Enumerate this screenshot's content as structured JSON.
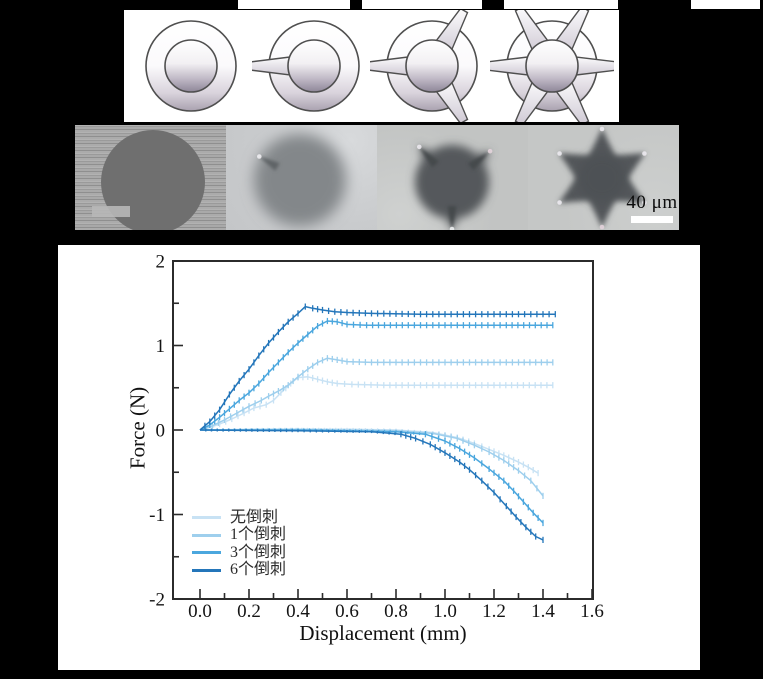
{
  "figure": {
    "scale_bar": {
      "label": "40 μm"
    },
    "schematics": {
      "items": [
        {
          "id": "no-barb",
          "barb_angles": [],
          "barb_len": 64
        },
        {
          "id": "one-barb",
          "barb_angles": [
            180
          ],
          "barb_len": 64
        },
        {
          "id": "three-barb",
          "barb_angles": [
            60,
            180,
            300
          ],
          "barb_len": 64
        },
        {
          "id": "six-barb",
          "barb_angles": [
            0,
            60,
            120,
            180,
            240,
            300
          ],
          "barb_len": 66
        }
      ]
    },
    "photos": {
      "items": [
        {
          "id": "micrograph-no-barb",
          "kind": "solid-circle"
        },
        {
          "id": "micrograph-one-barb",
          "kind": "blob-1barb",
          "spike_angles": [
            150
          ]
        },
        {
          "id": "micrograph-three-barb",
          "kind": "blob-3barb",
          "spike_angles": [
            133,
            39,
            270
          ]
        },
        {
          "id": "micrograph-six-barb",
          "kind": "star6",
          "points": 6,
          "phase_deg": 90,
          "outer_r": 50,
          "inner_r": 26
        }
      ]
    }
  },
  "chart_data": {
    "type": "line",
    "title": "",
    "xlabel": "Displacement (mm)",
    "ylabel": "Force (N)",
    "xlim": [
      -0.11,
      1.6
    ],
    "ylim": [
      -2,
      2
    ],
    "grid": false,
    "legend_position": "lower-left",
    "x_major_ticks": [
      0,
      0.2,
      0.4,
      0.6,
      0.8,
      1.0,
      1.2,
      1.4,
      1.6
    ],
    "x_tick_labels": [
      "0.0",
      "0.2",
      "0.4",
      "0.6",
      "0.8",
      "1.0",
      "1.2",
      "1.4",
      "1.6"
    ],
    "x_minor_ticks": [
      0.1,
      0.3,
      0.5,
      0.7,
      0.9,
      1.1,
      1.3,
      1.5
    ],
    "y_major_ticks": [
      -2,
      -1,
      0,
      1,
      2
    ],
    "y_tick_labels": [
      "-2",
      "-1",
      "0",
      "1",
      "2"
    ],
    "y_minor_ticks": [
      -1.5,
      -0.5,
      0.5,
      1.5
    ],
    "series": [
      {
        "id": "no-barb",
        "label": "无倒刺",
        "color": "#c8e2f4",
        "insertion": [
          [
            0,
            0
          ],
          [
            0.03,
            0.02
          ],
          [
            0.08,
            0.07
          ],
          [
            0.13,
            0.13
          ],
          [
            0.18,
            0.2
          ],
          [
            0.22,
            0.26
          ],
          [
            0.27,
            0.3
          ],
          [
            0.3,
            0.35
          ],
          [
            0.33,
            0.44
          ],
          [
            0.37,
            0.55
          ],
          [
            0.4,
            0.62
          ],
          [
            0.44,
            0.63
          ],
          [
            0.48,
            0.6
          ],
          [
            0.52,
            0.57
          ],
          [
            0.56,
            0.55
          ],
          [
            0.62,
            0.54
          ],
          [
            0.75,
            0.53
          ],
          [
            1.0,
            0.53
          ],
          [
            1.2,
            0.53
          ],
          [
            1.44,
            0.53
          ]
        ],
        "retraction": [
          [
            0,
            0
          ],
          [
            0.3,
            0.01
          ],
          [
            0.6,
            0.01
          ],
          [
            0.8,
            0
          ],
          [
            0.95,
            -0.03
          ],
          [
            1.05,
            -0.09
          ],
          [
            1.12,
            -0.16
          ],
          [
            1.18,
            -0.23
          ],
          [
            1.24,
            -0.3
          ],
          [
            1.3,
            -0.38
          ],
          [
            1.34,
            -0.44
          ],
          [
            1.38,
            -0.51
          ]
        ]
      },
      {
        "id": "one-barb",
        "label": "1个倒刺",
        "color": "#9ecfed",
        "insertion": [
          [
            0,
            0
          ],
          [
            0.05,
            0.05
          ],
          [
            0.1,
            0.12
          ],
          [
            0.15,
            0.2
          ],
          [
            0.2,
            0.28
          ],
          [
            0.25,
            0.35
          ],
          [
            0.28,
            0.4
          ],
          [
            0.32,
            0.46
          ],
          [
            0.36,
            0.53
          ],
          [
            0.4,
            0.63
          ],
          [
            0.44,
            0.72
          ],
          [
            0.48,
            0.8
          ],
          [
            0.52,
            0.85
          ],
          [
            0.56,
            0.83
          ],
          [
            0.6,
            0.81
          ],
          [
            0.7,
            0.8
          ],
          [
            0.9,
            0.8
          ],
          [
            1.1,
            0.8
          ],
          [
            1.3,
            0.8
          ],
          [
            1.44,
            0.8
          ]
        ],
        "retraction": [
          [
            0,
            0
          ],
          [
            0.4,
            0.01
          ],
          [
            0.8,
            -0.01
          ],
          [
            0.95,
            -0.04
          ],
          [
            1.05,
            -0.1
          ],
          [
            1.12,
            -0.18
          ],
          [
            1.18,
            -0.26
          ],
          [
            1.24,
            -0.36
          ],
          [
            1.3,
            -0.48
          ],
          [
            1.35,
            -0.6
          ],
          [
            1.4,
            -0.78
          ]
        ]
      },
      {
        "id": "three-barb",
        "label": "3个倒刺",
        "color": "#4ba7de",
        "insertion": [
          [
            0,
            0
          ],
          [
            0.04,
            0.06
          ],
          [
            0.08,
            0.15
          ],
          [
            0.12,
            0.25
          ],
          [
            0.16,
            0.35
          ],
          [
            0.2,
            0.44
          ],
          [
            0.24,
            0.55
          ],
          [
            0.28,
            0.68
          ],
          [
            0.32,
            0.8
          ],
          [
            0.36,
            0.92
          ],
          [
            0.4,
            1.03
          ],
          [
            0.44,
            1.13
          ],
          [
            0.48,
            1.23
          ],
          [
            0.52,
            1.29
          ],
          [
            0.56,
            1.28
          ],
          [
            0.6,
            1.25
          ],
          [
            0.68,
            1.24
          ],
          [
            0.85,
            1.24
          ],
          [
            1.05,
            1.24
          ],
          [
            1.25,
            1.24
          ],
          [
            1.44,
            1.24
          ]
        ],
        "retraction": [
          [
            0,
            0
          ],
          [
            0.4,
            0
          ],
          [
            0.8,
            -0.02
          ],
          [
            0.92,
            -0.05
          ],
          [
            1.0,
            -0.13
          ],
          [
            1.06,
            -0.22
          ],
          [
            1.12,
            -0.33
          ],
          [
            1.18,
            -0.46
          ],
          [
            1.24,
            -0.6
          ],
          [
            1.28,
            -0.72
          ],
          [
            1.32,
            -0.85
          ],
          [
            1.36,
            -0.98
          ],
          [
            1.4,
            -1.1
          ]
        ]
      },
      {
        "id": "six-barb",
        "label": "6个倒刺",
        "color": "#2476ba",
        "insertion": [
          [
            0,
            0
          ],
          [
            0.04,
            0.1
          ],
          [
            0.08,
            0.24
          ],
          [
            0.12,
            0.42
          ],
          [
            0.16,
            0.58
          ],
          [
            0.2,
            0.72
          ],
          [
            0.24,
            0.88
          ],
          [
            0.28,
            1.03
          ],
          [
            0.32,
            1.16
          ],
          [
            0.36,
            1.28
          ],
          [
            0.4,
            1.38
          ],
          [
            0.43,
            1.46
          ],
          [
            0.46,
            1.44
          ],
          [
            0.5,
            1.42
          ],
          [
            0.55,
            1.4
          ],
          [
            0.6,
            1.39
          ],
          [
            0.7,
            1.38
          ],
          [
            0.9,
            1.37
          ],
          [
            1.1,
            1.37
          ],
          [
            1.3,
            1.37
          ],
          [
            1.45,
            1.37
          ]
        ],
        "retraction": [
          [
            0,
            0
          ],
          [
            0.4,
            -0.01
          ],
          [
            0.7,
            -0.02
          ],
          [
            0.82,
            -0.05
          ],
          [
            0.88,
            -0.1
          ],
          [
            0.94,
            -0.17
          ],
          [
            1.0,
            -0.27
          ],
          [
            1.06,
            -0.38
          ],
          [
            1.1,
            -0.47
          ],
          [
            1.15,
            -0.6
          ],
          [
            1.2,
            -0.74
          ],
          [
            1.25,
            -0.9
          ],
          [
            1.29,
            -1.03
          ],
          [
            1.33,
            -1.15
          ],
          [
            1.37,
            -1.26
          ],
          [
            1.4,
            -1.3
          ]
        ]
      }
    ]
  }
}
